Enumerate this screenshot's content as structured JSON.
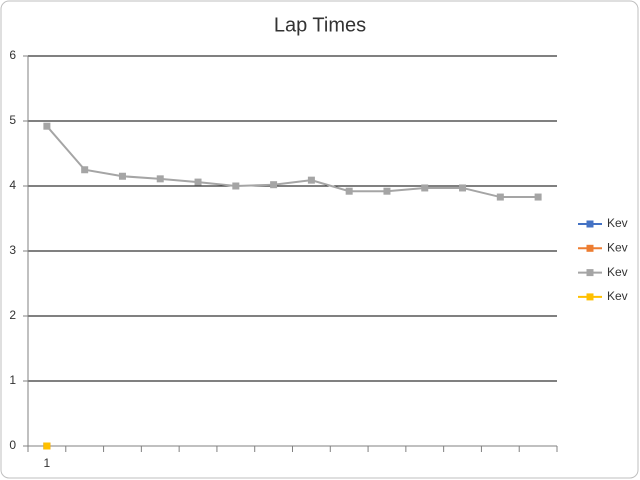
{
  "chart_data": {
    "type": "line",
    "title": "Lap Times",
    "categories": [
      "1",
      null,
      null,
      null,
      null,
      null,
      null,
      null,
      null,
      null,
      null,
      null,
      null,
      null
    ],
    "series": [
      {
        "name": "Kev",
        "color": "#4472c4",
        "values": [
          0,
          null,
          null,
          null,
          null,
          null,
          null,
          null,
          null,
          null,
          null,
          null,
          null,
          null
        ]
      },
      {
        "name": "Kev",
        "color": "#ed7d31",
        "values": [
          0,
          null,
          null,
          null,
          null,
          null,
          null,
          null,
          null,
          null,
          null,
          null,
          null,
          null
        ]
      },
      {
        "name": "Kev",
        "color": "#a5a5a5",
        "values": [
          4.92,
          4.25,
          4.15,
          4.11,
          4.06,
          4.0,
          4.02,
          4.09,
          3.92,
          3.92,
          3.97,
          3.97,
          3.83,
          3.83
        ]
      },
      {
        "name": "Kev",
        "color": "#ffc000",
        "values": [
          0,
          null,
          null,
          null,
          null,
          null,
          null,
          null,
          null,
          null,
          null,
          null,
          null,
          null
        ]
      }
    ],
    "ylim": [
      0,
      6
    ],
    "yticks": [
      0,
      1,
      2,
      3,
      4,
      5,
      6
    ],
    "grid": true,
    "legend": "right"
  }
}
